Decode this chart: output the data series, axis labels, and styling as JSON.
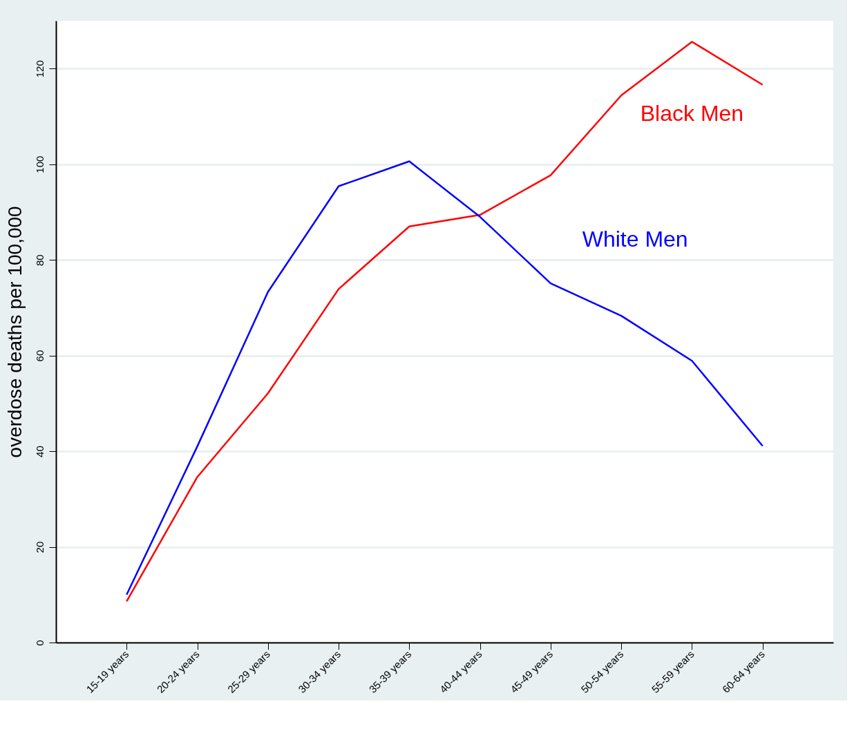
{
  "chart_data": {
    "type": "line",
    "ylabel": "overdose deaths per 100,000",
    "categories": [
      "15-19 years",
      "20-24 years",
      "25-29 years",
      "30-34 years",
      "35-39 years",
      "40-44 years",
      "45-49 years",
      "50-54 years",
      "55-59 years",
      "60-64 years"
    ],
    "series": [
      {
        "name": "Black Men",
        "color": "#ff0000",
        "values": [
          8.6,
          34.6,
          52.1,
          73.9,
          87,
          89.4,
          97.7,
          114.4,
          125.6,
          116.6
        ]
      },
      {
        "name": "White Men",
        "color": "#0000ff",
        "values": [
          10.0,
          41,
          73.3,
          95.4,
          100.6,
          89,
          75.1,
          68.3,
          58.9,
          41.1
        ]
      }
    ],
    "ylim": [
      0,
      130
    ],
    "yticks": [
      0,
      20,
      40,
      60,
      80,
      100,
      120
    ],
    "grid": "y",
    "legend": false,
    "marker": "none",
    "line_style": "solid"
  }
}
